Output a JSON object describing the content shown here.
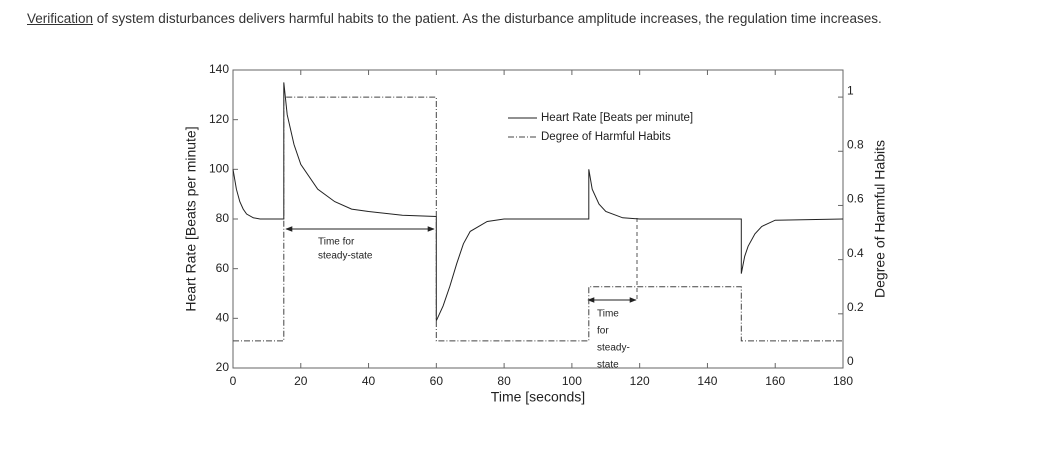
{
  "caption": {
    "emphasis": "Verification",
    "text": " of system disturbances delivers harmful habits to the patient. As the disturbance amplitude increases, the regulation time increases."
  },
  "chart_data": {
    "type": "line",
    "xlabel": "Time [seconds]",
    "ylabel": "Heart Rate [Beats per minute]",
    "y2label": "Degree of Harmful Habits",
    "xlim": [
      0,
      180
    ],
    "xticks": [
      0,
      20,
      40,
      60,
      80,
      100,
      120,
      140,
      160,
      180
    ],
    "ylim": [
      20,
      140
    ],
    "yticks": [
      20,
      40,
      60,
      80,
      100,
      120,
      140
    ],
    "y2lim": [
      0,
      1.1
    ],
    "y2ticks": [
      0,
      0.2,
      0.4,
      0.6,
      0.8,
      1
    ],
    "legend": "top",
    "series": [
      {
        "name": "Heart Rate [Beats per minute]",
        "color": "#222222",
        "style": "solid",
        "x": [
          0,
          1,
          2,
          3,
          4,
          6,
          8,
          10,
          15,
          15,
          16,
          18,
          20,
          25,
          30,
          35,
          40,
          50,
          60,
          60,
          62,
          64,
          66,
          68,
          70,
          75,
          80,
          105,
          105,
          106,
          108,
          110,
          115,
          120,
          150,
          150,
          151,
          152,
          154,
          156,
          160,
          180
        ],
        "values": [
          100,
          92,
          87,
          84,
          82,
          80.5,
          80,
          80,
          80,
          135,
          122,
          110,
          102,
          92,
          87,
          84,
          83,
          81.5,
          81,
          39,
          45,
          53,
          62,
          70,
          75,
          79,
          80,
          80,
          100,
          92,
          86,
          83,
          80.5,
          80,
          80,
          58,
          65,
          69,
          74,
          77,
          79.5,
          80
        ]
      },
      {
        "name": "Degree of Harmful Habits",
        "color": "#444444",
        "style": "dashdot",
        "axis": "y2",
        "x": [
          0,
          15,
          15,
          60,
          60,
          105,
          105,
          150,
          150,
          180
        ],
        "values": [
          0.1,
          0.1,
          1,
          1,
          0.1,
          0.1,
          0.3,
          0.3,
          0.1,
          0.1
        ]
      }
    ],
    "annotations": [
      {
        "lines": [
          "Time for",
          "steady-state"
        ]
      },
      {
        "lines": [
          "Time",
          "for",
          "steady-",
          "state"
        ]
      }
    ]
  }
}
